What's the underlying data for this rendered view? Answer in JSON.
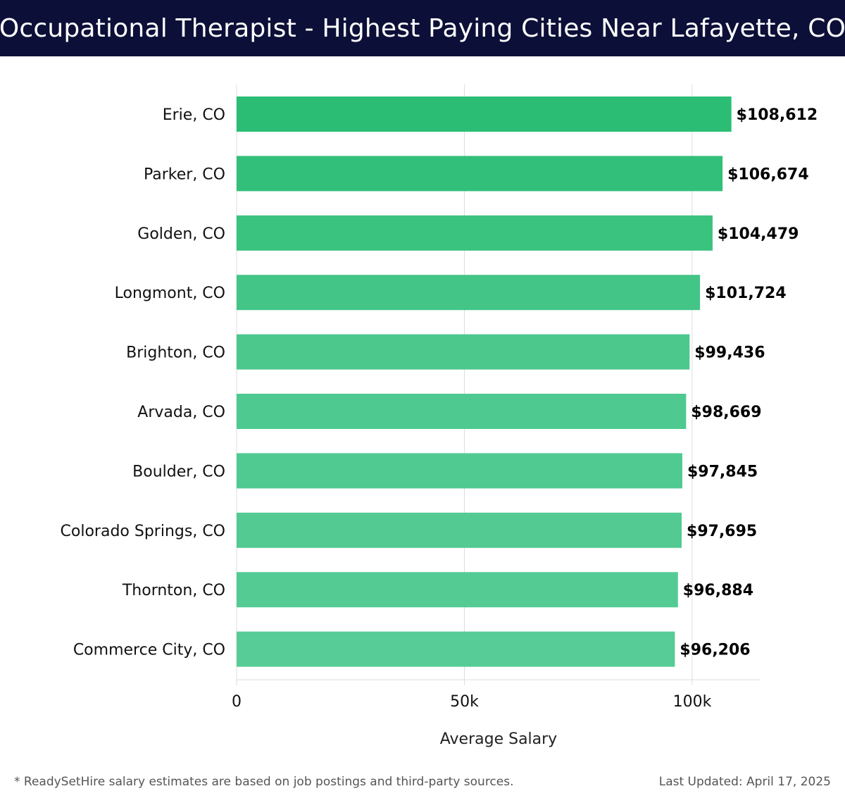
{
  "header": {
    "title": "Occupational Therapist - Highest Paying Cities Near Lafayette, CO"
  },
  "chart_data": {
    "type": "bar",
    "orientation": "horizontal",
    "title": "Occupational Therapist - Highest Paying Cities Near Lafayette, CO",
    "xlabel": "Average Salary",
    "ylabel": "",
    "xlim": [
      0,
      115000
    ],
    "x_ticks": [
      0,
      50000,
      100000
    ],
    "x_tick_labels": [
      "0",
      "50k",
      "100k"
    ],
    "grid": true,
    "categories": [
      "Erie, CO",
      "Parker, CO",
      "Golden, CO",
      "Longmont, CO",
      "Brighton, CO",
      "Arvada, CO",
      "Boulder, CO",
      "Colorado Springs, CO",
      "Thornton, CO",
      "Commerce City, CO"
    ],
    "values": [
      108612,
      106674,
      104479,
      101724,
      99436,
      98669,
      97845,
      97695,
      96884,
      96206
    ],
    "value_labels": [
      "$108,612",
      "$106,674",
      "$104,479",
      "$101,724",
      "$99,436",
      "$98,669",
      "$97,845",
      "$97,695",
      "$96,884",
      "$96,206"
    ],
    "bar_color_max": "#2bbd74",
    "bar_color_min": "#57cc96",
    "grid_color": "#dddddd"
  },
  "footer": {
    "note": "* ReadySetHire salary estimates are based on job postings and third-party sources.",
    "updated": "Last Updated: April 17, 2025"
  }
}
